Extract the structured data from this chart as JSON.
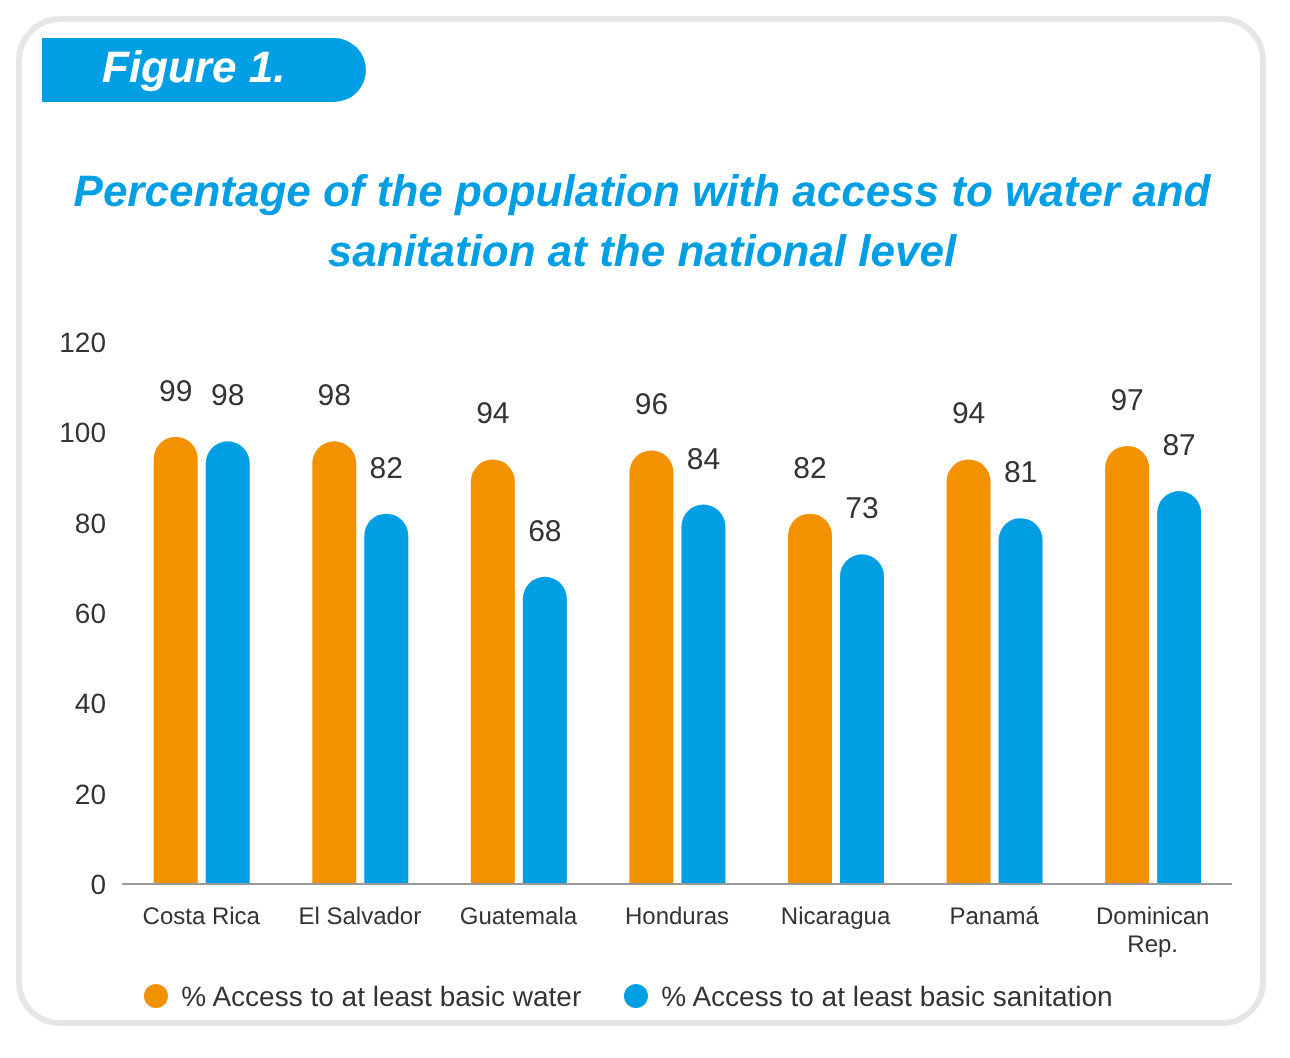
{
  "chart_data": {
    "type": "bar",
    "title": "Percentage of the population with access to water and sanitation at the national level",
    "annotations": [
      "Figure 1."
    ],
    "categories": [
      "Costa Rica",
      "El Salvador",
      "Guatemala",
      "Honduras",
      "Nicaragua",
      "Panamá",
      "Dominican Rep."
    ],
    "series": [
      {
        "name": "% Access to at least basic water",
        "color": "#f39200",
        "values": [
          99,
          98,
          94,
          96,
          82,
          94,
          97
        ]
      },
      {
        "name": "% Access to at least basic sanitation",
        "color": "#009fe3",
        "values": [
          98,
          82,
          68,
          84,
          73,
          81,
          87
        ]
      }
    ],
    "ylim": [
      0,
      120
    ],
    "yticks": [
      0,
      20,
      40,
      60,
      80,
      100,
      120
    ],
    "data_labels": true,
    "legend": "bottom"
  }
}
